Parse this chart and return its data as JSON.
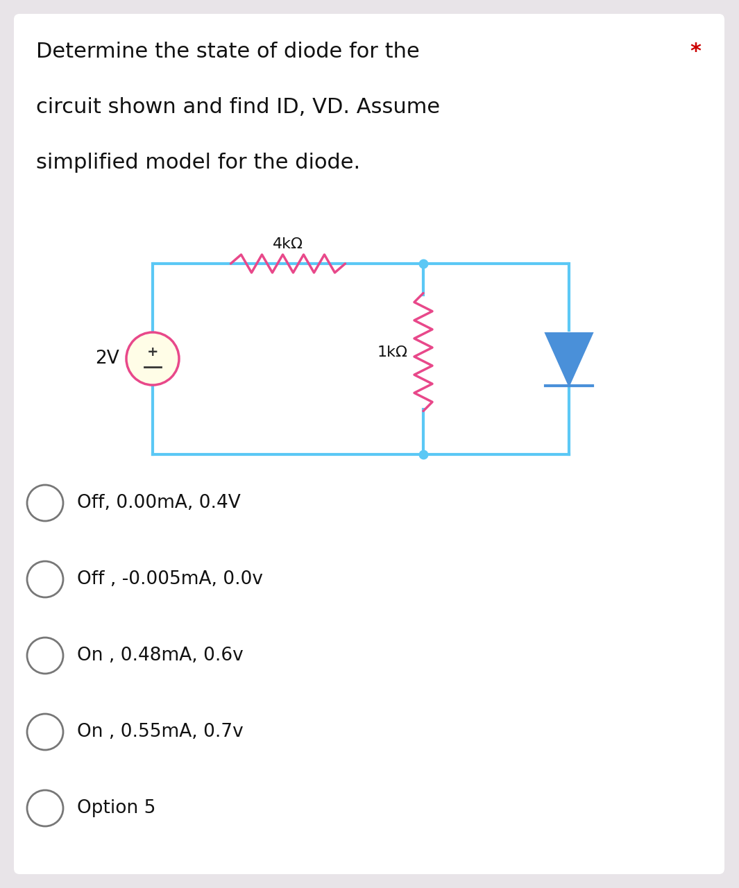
{
  "bg_color": "#e8e4e8",
  "card_color": "#ffffff",
  "title_lines": [
    "Determine the state of diode for the",
    "circuit shown and find ID, VD. Assume",
    "simplified model for the diode."
  ],
  "asterisk": "*",
  "asterisk_color": "#cc0000",
  "circuit_wire_color": "#5bc8f5",
  "resistor_color": "#e8488a",
  "battery_circle_color": "#e8488a",
  "battery_fill": "#fffde7",
  "diode_color": "#4a90d9",
  "options": [
    "Off, 0.00mA, 0.4V",
    "Off , -0.005mA, 0.0v",
    "On , 0.48mA, 0.6v",
    "On , 0.55mA, 0.7v",
    "Option 5"
  ],
  "option_text_color": "#111111",
  "circle_edge_color": "#777777",
  "label_2v": "2V",
  "label_4k": "4kΩ",
  "label_1k": "1kΩ",
  "title_fontsize": 22,
  "option_fontsize": 19
}
